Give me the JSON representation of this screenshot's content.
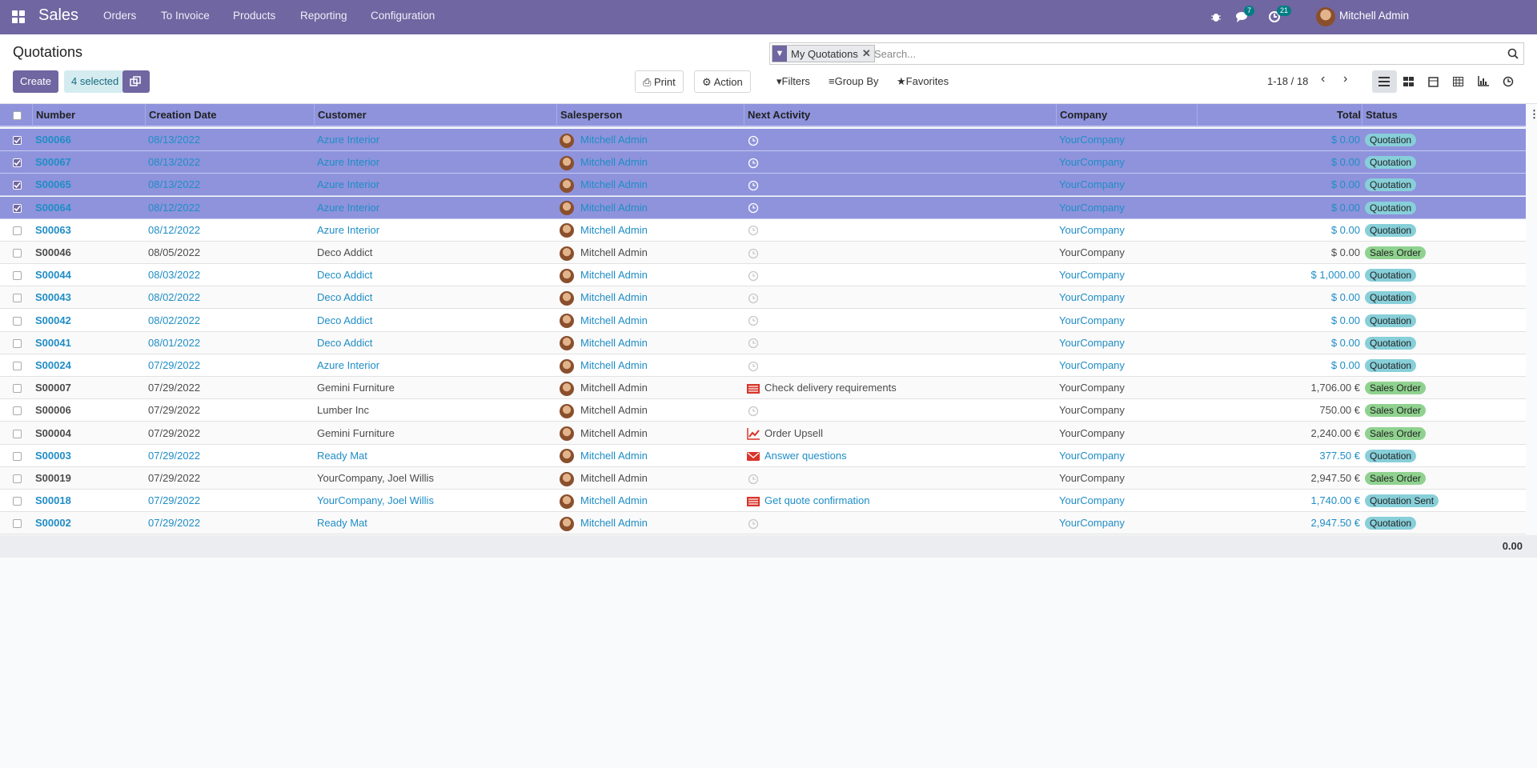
{
  "navbar": {
    "app": "Sales",
    "menu": [
      "Orders",
      "To Invoice",
      "Products",
      "Reporting",
      "Configuration"
    ],
    "messages_badge": 7,
    "activities_badge": 21,
    "user": "Mitchell Admin"
  },
  "control_panel": {
    "title": "Quotations",
    "create": "Create",
    "selected": "4 selected",
    "print": "Print",
    "action": "Action",
    "facet": "My Quotations",
    "search_placeholder": "Search...",
    "filters": "Filters",
    "group_by": "Group By",
    "favorites": "Favorites",
    "pager": "1-18 / 18"
  },
  "table": {
    "columns": [
      "Number",
      "Creation Date",
      "Customer",
      "Salesperson",
      "Next Activity",
      "Company",
      "Total",
      "Status"
    ],
    "rows": [
      {
        "number": "S00066",
        "date": "08/13/2022",
        "customer": "Azure Interior",
        "salesperson": "Mitchell Admin",
        "activity_icon": "clock",
        "company": "YourCompany",
        "total": "$ 0.00",
        "status": "Quotation",
        "selected": true,
        "text_color": "#1f8dc6",
        "badge_color": "#87cfd9"
      },
      {
        "number": "S00067",
        "date": "08/13/2022",
        "customer": "Azure Interior",
        "salesperson": "Mitchell Admin",
        "activity_icon": "clock",
        "company": "YourCompany",
        "total": "$ 0.00",
        "status": "Quotation",
        "selected": true,
        "text_color": "#1f8dc6",
        "badge_color": "#87cfd9"
      },
      {
        "number": "S00065",
        "date": "08/13/2022",
        "customer": "Azure Interior",
        "salesperson": "Mitchell Admin",
        "activity_icon": "clock",
        "company": "YourCompany",
        "total": "$ 0.00",
        "status": "Quotation",
        "selected": true,
        "text_color": "#1f8dc6",
        "badge_color": "#87cfd9"
      },
      {
        "number": "S00064",
        "date": "08/12/2022",
        "customer": "Azure Interior",
        "salesperson": "Mitchell Admin",
        "activity_icon": "clock",
        "company": "YourCompany",
        "total": "$ 0.00",
        "status": "Quotation",
        "selected": true,
        "text_color": "#1f8dc6",
        "badge_color": "#87cfd9"
      },
      {
        "number": "S00063",
        "date": "08/12/2022",
        "customer": "Azure Interior",
        "salesperson": "Mitchell Admin",
        "activity_icon": "clock",
        "company": "YourCompany",
        "total": "$ 0.00",
        "status": "Quotation",
        "selected": false,
        "text_color": "#1f8dc6",
        "badge_color": "#87cfd9"
      },
      {
        "number": "S00046",
        "date": "08/05/2022",
        "customer": "Deco Addict",
        "salesperson": "Mitchell Admin",
        "activity_icon": "clock",
        "company": "YourCompany",
        "total": "$ 0.00",
        "status": "Sales Order",
        "selected": false,
        "text_color": "#4c4c4c",
        "badge_color": "#8fd28f"
      },
      {
        "number": "S00044",
        "date": "08/03/2022",
        "customer": "Deco Addict",
        "salesperson": "Mitchell Admin",
        "activity_icon": "clock",
        "company": "YourCompany",
        "total": "$ 1,000.00",
        "status": "Quotation",
        "selected": false,
        "text_color": "#1f8dc6",
        "badge_color": "#87cfd9"
      },
      {
        "number": "S00043",
        "date": "08/02/2022",
        "customer": "Deco Addict",
        "salesperson": "Mitchell Admin",
        "activity_icon": "clock",
        "company": "YourCompany",
        "total": "$ 0.00",
        "status": "Quotation",
        "selected": false,
        "text_color": "#1f8dc6",
        "badge_color": "#87cfd9"
      },
      {
        "number": "S00042",
        "date": "08/02/2022",
        "customer": "Deco Addict",
        "salesperson": "Mitchell Admin",
        "activity_icon": "clock",
        "company": "YourCompany",
        "total": "$ 0.00",
        "status": "Quotation",
        "selected": false,
        "text_color": "#1f8dc6",
        "badge_color": "#87cfd9"
      },
      {
        "number": "S00041",
        "date": "08/01/2022",
        "customer": "Deco Addict",
        "salesperson": "Mitchell Admin",
        "activity_icon": "clock",
        "company": "YourCompany",
        "total": "$ 0.00",
        "status": "Quotation",
        "selected": false,
        "text_color": "#1f8dc6",
        "badge_color": "#87cfd9"
      },
      {
        "number": "S00024",
        "date": "07/29/2022",
        "customer": "Azure Interior",
        "salesperson": "Mitchell Admin",
        "activity_icon": "clock",
        "company": "YourCompany",
        "total": "$ 0.00",
        "status": "Quotation",
        "selected": false,
        "text_color": "#1f8dc6",
        "badge_color": "#87cfd9"
      },
      {
        "number": "S00007",
        "date": "07/29/2022",
        "customer": "Gemini Furniture",
        "salesperson": "Mitchell Admin",
        "activity_icon": "list",
        "activity": "Check delivery requirements",
        "company": "YourCompany",
        "total": "1,706.00 €",
        "status": "Sales Order",
        "selected": false,
        "text_color": "#4c4c4c",
        "badge_color": "#8fd28f"
      },
      {
        "number": "S00006",
        "date": "07/29/2022",
        "customer": "Lumber Inc",
        "salesperson": "Mitchell Admin",
        "activity_icon": "clock",
        "company": "YourCompany",
        "total": "750.00 €",
        "status": "Sales Order",
        "selected": false,
        "text_color": "#4c4c4c",
        "badge_color": "#8fd28f"
      },
      {
        "number": "S00004",
        "date": "07/29/2022",
        "customer": "Gemini Furniture",
        "salesperson": "Mitchell Admin",
        "activity_icon": "chart",
        "activity": "Order Upsell",
        "company": "YourCompany",
        "total": "2,240.00 €",
        "status": "Sales Order",
        "selected": false,
        "text_color": "#4c4c4c",
        "badge_color": "#8fd28f"
      },
      {
        "number": "S00003",
        "date": "07/29/2022",
        "customer": "Ready Mat",
        "salesperson": "Mitchell Admin",
        "activity_icon": "mail",
        "activity": "Answer questions",
        "company": "YourCompany",
        "total": "377.50 €",
        "status": "Quotation",
        "selected": false,
        "text_color": "#1f8dc6",
        "badge_color": "#87cfd9"
      },
      {
        "number": "S00019",
        "date": "07/29/2022",
        "customer": "YourCompany, Joel Willis",
        "salesperson": "Mitchell Admin",
        "activity_icon": "clock",
        "company": "YourCompany",
        "total": "2,947.50 €",
        "status": "Sales Order",
        "selected": false,
        "text_color": "#4c4c4c",
        "badge_color": "#8fd28f"
      },
      {
        "number": "S00018",
        "date": "07/29/2022",
        "customer": "YourCompany, Joel Willis",
        "salesperson": "Mitchell Admin",
        "activity_icon": "list",
        "activity": "Get quote confirmation",
        "company": "YourCompany",
        "total": "1,740.00 €",
        "status": "Quotation Sent",
        "selected": false,
        "text_color": "#1f8dc6",
        "badge_color": "#87cfd9"
      },
      {
        "number": "S00002",
        "date": "07/29/2022",
        "customer": "Ready Mat",
        "salesperson": "Mitchell Admin",
        "activity_icon": "clock",
        "company": "YourCompany",
        "total": "2,947.50 €",
        "status": "Quotation",
        "selected": false,
        "text_color": "#1f8dc6",
        "badge_color": "#87cfd9"
      }
    ],
    "footer_total": "0.00"
  }
}
